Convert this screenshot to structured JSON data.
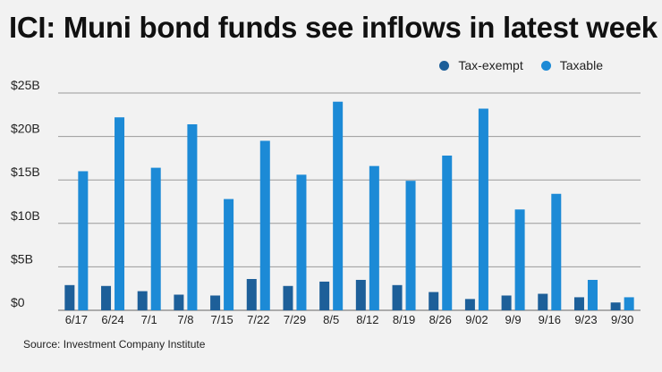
{
  "title": "ICI: Muni bond funds see inflows in latest week",
  "source": "Source: Investment Company Institute",
  "colors": {
    "tax_exempt": "#1d5f99",
    "taxable": "#1c8ad6",
    "grid": "#9a9a9a",
    "background": "#f2f2f2"
  },
  "chart_data": {
    "type": "bar",
    "title": "ICI: Muni bond funds see inflows in latest week",
    "xlabel": "",
    "ylabel": "",
    "ylim": [
      0,
      25
    ],
    "yticks": [
      {
        "value": 0,
        "label": "$0"
      },
      {
        "value": 5,
        "label": "$5B"
      },
      {
        "value": 10,
        "label": "$10B"
      },
      {
        "value": 15,
        "label": "$15B"
      },
      {
        "value": 20,
        "label": "$20B"
      },
      {
        "value": 25,
        "label": "$25B"
      }
    ],
    "categories": [
      "6/17",
      "6/24",
      "7/1",
      "7/8",
      "7/15",
      "7/22",
      "7/29",
      "8/5",
      "8/12",
      "8/19",
      "8/26",
      "9/02",
      "9/9",
      "9/16",
      "9/23",
      "9/30"
    ],
    "series": [
      {
        "name": "Tax-exempt",
        "color": "#1d5f99",
        "values": [
          2.9,
          2.8,
          2.2,
          1.8,
          1.7,
          3.6,
          2.8,
          3.3,
          3.5,
          2.9,
          2.1,
          1.3,
          1.7,
          1.9,
          1.5,
          0.9
        ]
      },
      {
        "name": "Taxable",
        "color": "#1c8ad6",
        "values": [
          16.0,
          22.2,
          16.4,
          21.4,
          12.8,
          19.5,
          15.6,
          24.0,
          16.6,
          14.9,
          17.8,
          23.2,
          11.6,
          13.4,
          3.5,
          1.5
        ]
      }
    ],
    "grid": true,
    "legend_position": "top-right"
  }
}
